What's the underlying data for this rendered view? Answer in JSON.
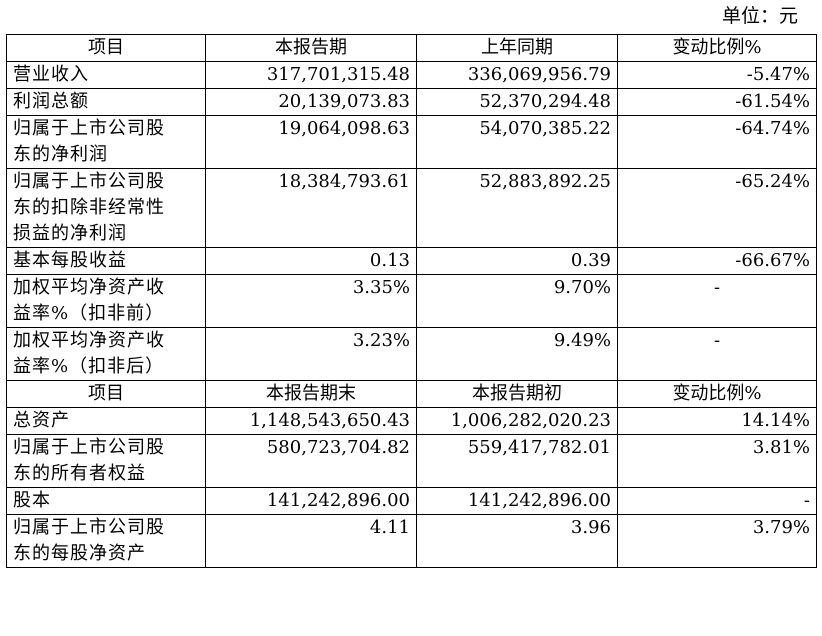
{
  "unit_label": "单位：元",
  "section1": {
    "headers": [
      "项目",
      "本报告期",
      "上年同期",
      "变动比例%"
    ],
    "rows": [
      {
        "label": [
          "营业收入"
        ],
        "current": "317,701,315.48",
        "prior": "336,069,956.79",
        "change": "-5.47%"
      },
      {
        "label": [
          "利润总额"
        ],
        "current": "20,139,073.83",
        "prior": "52,370,294.48",
        "change": "-61.54%"
      },
      {
        "label": [
          "归属于上市公司股",
          "东的净利润"
        ],
        "current": "19,064,098.63",
        "prior": "54,070,385.22",
        "change": "-64.74%"
      },
      {
        "label": [
          "归属于上市公司股",
          "东的扣除非经常性",
          "损益的净利润"
        ],
        "current": "18,384,793.61",
        "prior": "52,883,892.25",
        "change": "-65.24%"
      },
      {
        "label": [
          "基本每股收益"
        ],
        "current": "0.13",
        "prior": "0.39",
        "change": "-66.67%"
      },
      {
        "label": [
          "加权平均净资产收",
          "益率%（扣非前）"
        ],
        "current": "3.35%",
        "prior": "9.70%",
        "change": "-"
      },
      {
        "label": [
          "加权平均净资产收",
          "益率%（扣非后）"
        ],
        "current": "3.23%",
        "prior": "9.49%",
        "change": "-"
      }
    ]
  },
  "section2": {
    "headers": [
      "项目",
      "本报告期末",
      "本报告期初",
      "变动比例%"
    ],
    "rows": [
      {
        "label": [
          "总资产"
        ],
        "current": "1,148,543,650.43",
        "prior": "1,006,282,020.23",
        "change": "14.14%"
      },
      {
        "label": [
          "归属于上市公司股",
          "东的所有者权益"
        ],
        "current": "580,723,704.82",
        "prior": "559,417,782.01",
        "change": "3.81%"
      },
      {
        "label": [
          "股本"
        ],
        "current": "141,242,896.00",
        "prior": "141,242,896.00",
        "change": "-"
      },
      {
        "label": [
          "归属于上市公司股",
          "东的每股净资产"
        ],
        "current": "4.11",
        "prior": "3.96",
        "change": "3.79%"
      }
    ]
  }
}
